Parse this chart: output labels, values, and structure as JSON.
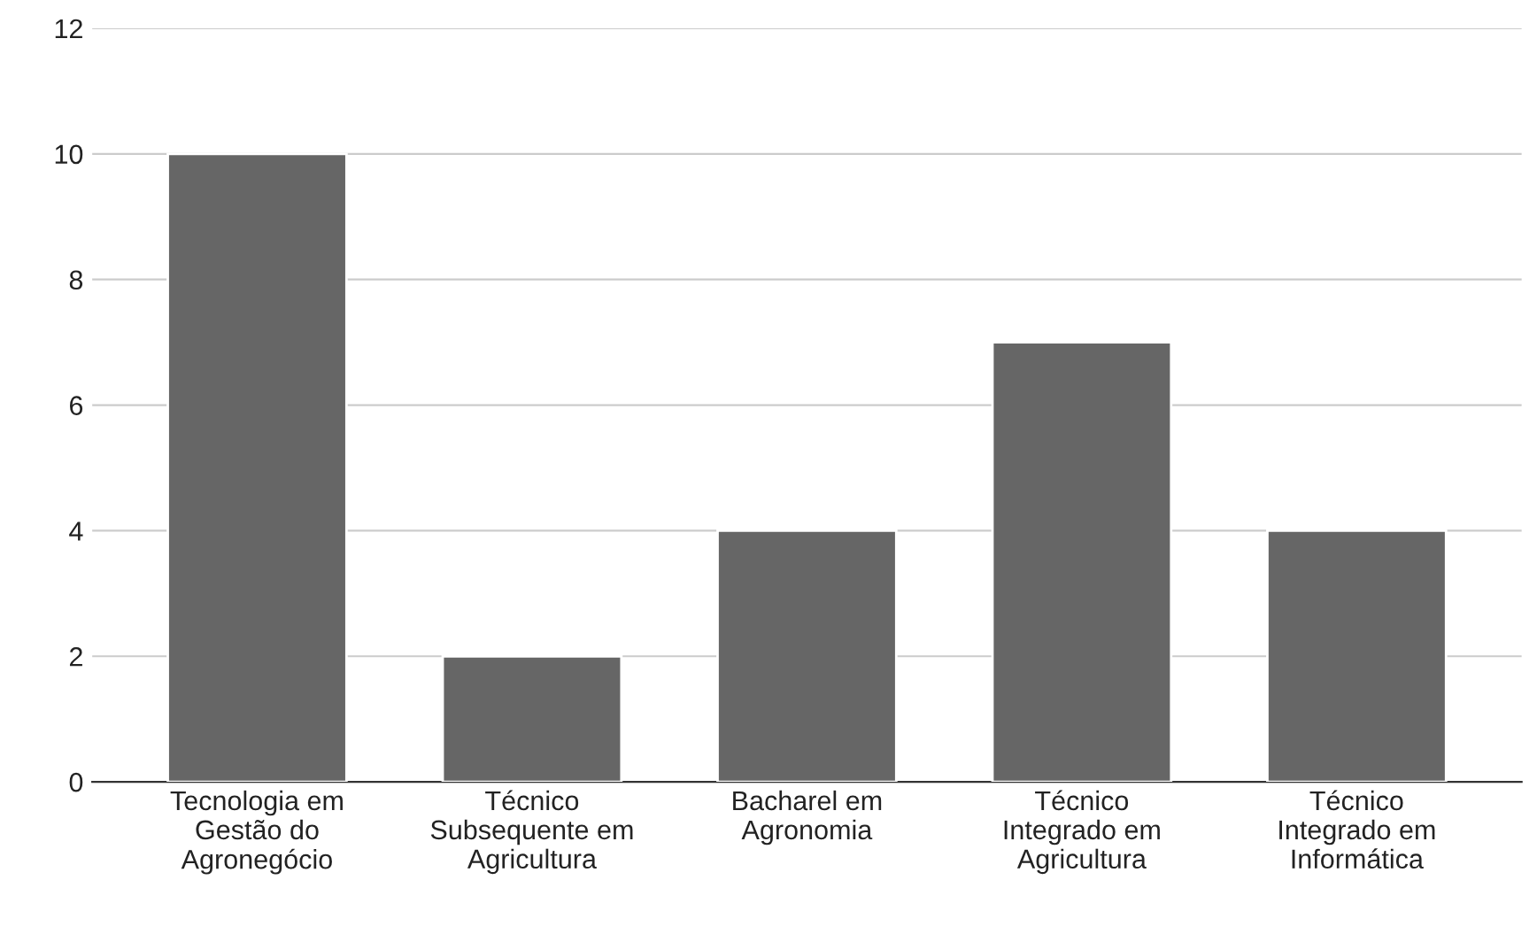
{
  "chart_data": {
    "type": "bar",
    "categories": [
      "Tecnologia em\nGestão do\nAgronegócio",
      "Técnico\nSubsequente em\nAgricultura",
      "Bacharel em\nAgronomia",
      "Técnico\nIntegrado em\nAgricultura",
      "Técnico\nIntegrado em\nInformática"
    ],
    "values": [
      10,
      2,
      4,
      7,
      4
    ],
    "color": "#666666",
    "ylim": [
      0,
      12
    ],
    "yticks": [
      0,
      2,
      4,
      6,
      8,
      10,
      12
    ],
    "grid": "y"
  }
}
